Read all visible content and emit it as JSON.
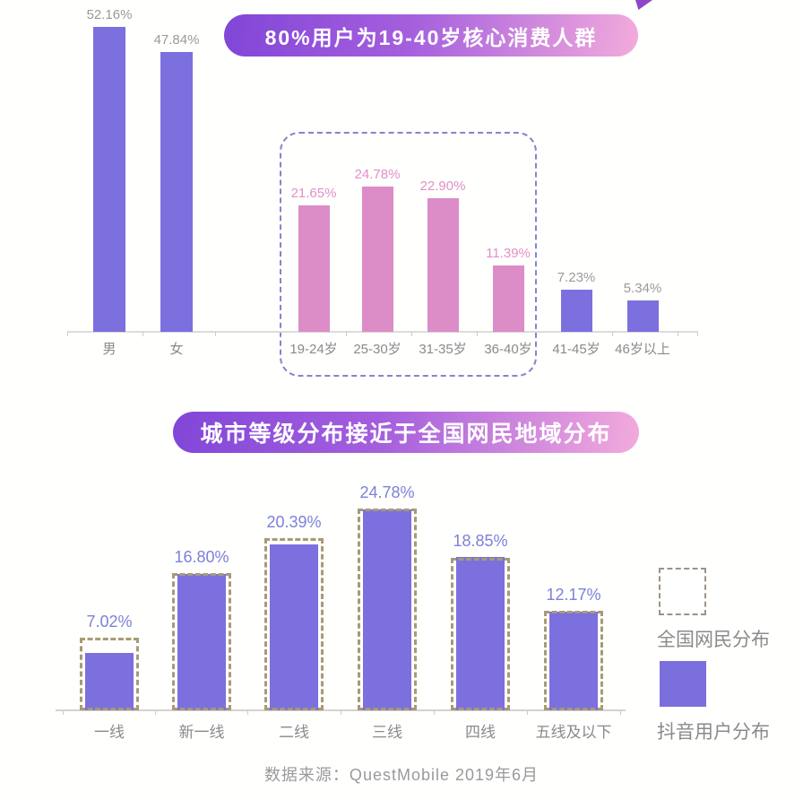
{
  "decor": {
    "corner_triangle_color": "#8f46c8"
  },
  "colors": {
    "bar_purple": "#7c6fde",
    "bar_pink": "#dc8cc6",
    "dashed_outline_tan": "#a89a77",
    "banner_gradient_left": "#8146d8",
    "banner_gradient_right": "#f3abdc",
    "value_label_gray": "#9a9a9a",
    "value_label_pink": "#e28fc7",
    "value_label_periwinkle": "#7d80d8",
    "axis_gray": "#dcdcdc"
  },
  "chart_data": [
    {
      "type": "bar",
      "title": "80%用户为19-40岁核心消费人群",
      "categories": [
        "男",
        "女",
        "19-24岁",
        "25-30岁",
        "31-35岁",
        "36-40岁",
        "41-45岁",
        "46岁以上"
      ],
      "values": [
        52.16,
        47.84,
        21.65,
        24.78,
        22.9,
        11.39,
        7.23,
        5.34
      ],
      "value_labels": [
        "52.16%",
        "47.84%",
        "21.65%",
        "24.78%",
        "22.90%",
        "11.39%",
        "7.23%",
        "5.34%"
      ],
      "highlight_indices": [
        2,
        3,
        4,
        5
      ],
      "highlight_note": "19-40岁 age bars are pink and enclosed in a dashed rounded outline",
      "bar_color_default": "#7c6fde",
      "bar_color_highlight": "#dc8cc6",
      "label_color_default": "#9a9a9a",
      "label_color_highlight": "#e28fc7",
      "xlabel": "",
      "ylabel": "",
      "ylim": [
        0,
        55
      ],
      "grid": false
    },
    {
      "type": "bar",
      "title": "城市等级分布接近于全国网民地域分布",
      "categories": [
        "一线",
        "新一线",
        "二线",
        "三线",
        "四线",
        "五线及以下"
      ],
      "series": [
        {
          "name": "抖音用户分布",
          "style": "solid",
          "color": "#7c6fde",
          "values": [
            7.02,
            16.8,
            20.39,
            24.78,
            18.85,
            12.17
          ],
          "value_labels": [
            "7.02%",
            "16.80%",
            "20.39%",
            "24.78%",
            "18.85%",
            "12.17%"
          ]
        },
        {
          "name": "全国网民分布",
          "style": "dashed-outline",
          "color": "#a89a77",
          "values_estimated": [
            9.0,
            16.9,
            21.2,
            24.9,
            18.8,
            12.3
          ]
        }
      ],
      "value_label_color": "#7d80d8",
      "xlabel": "",
      "ylabel": "",
      "ylim": [
        0,
        28
      ],
      "grid": false,
      "legend": [
        {
          "label": "全国网民分布",
          "swatch": "dashed-outline"
        },
        {
          "label": "抖音用户分布",
          "swatch": "solid-purple"
        }
      ],
      "legend_position": "right"
    }
  ],
  "source": {
    "text": "数据来源：QuestMobile 2019年6月"
  }
}
